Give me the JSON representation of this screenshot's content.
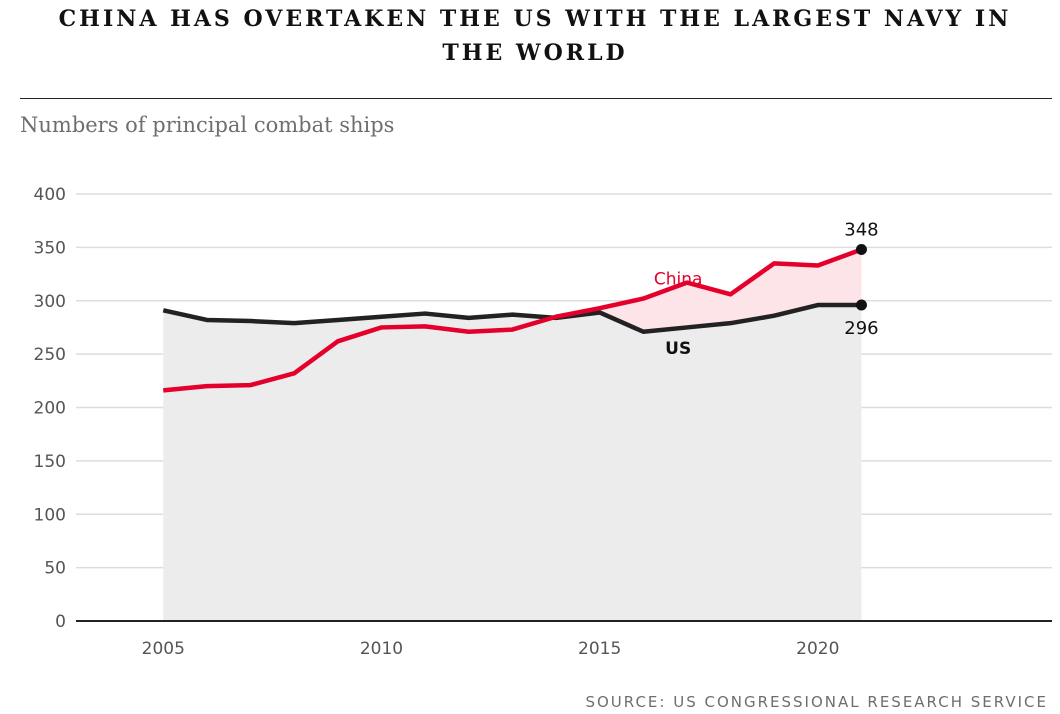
{
  "header": {
    "title": "CHINA HAS OVERTAKEN THE US WITH THE LARGEST NAVY IN THE WORLD",
    "subtitle": "Numbers of principal combat ships"
  },
  "footer": {
    "source": "SOURCE: US CONGRESSIONAL RESEARCH SERVICE"
  },
  "chart_data": {
    "type": "line",
    "title": "CHINA HAS OVERTAKEN THE US WITH THE LARGEST NAVY IN THE WORLD",
    "subtitle": "Numbers of principal combat ships",
    "xlabel": "",
    "ylabel": "",
    "x": [
      2005,
      2006,
      2007,
      2008,
      2009,
      2010,
      2011,
      2012,
      2013,
      2014,
      2015,
      2016,
      2017,
      2018,
      2019,
      2020,
      2021
    ],
    "xlim": [
      2003,
      2025
    ],
    "ylim": [
      0,
      400
    ],
    "xticks": [
      "2005",
      "2010",
      "2015",
      "2020"
    ],
    "yticks": [
      "0",
      "50",
      "100",
      "150",
      "200",
      "250",
      "300",
      "350",
      "400"
    ],
    "grid": true,
    "legend": "none",
    "series": [
      {
        "name": "China",
        "color": "#e4002b",
        "values": [
          216,
          220,
          221,
          232,
          262,
          275,
          276,
          271,
          273,
          285,
          293,
          302,
          317,
          306,
          335,
          333,
          348
        ],
        "end_label": "348"
      },
      {
        "name": "US",
        "color": "#222222",
        "values": [
          291,
          282,
          281,
          279,
          282,
          285,
          288,
          284,
          287,
          284,
          289,
          271,
          275,
          279,
          286,
          296,
          296
        ],
        "end_label": "296"
      }
    ],
    "colors": {
      "us_area": "#ececec",
      "china_area": "#fde4e8",
      "grid": "#dddddd",
      "axis": "#222222"
    }
  }
}
